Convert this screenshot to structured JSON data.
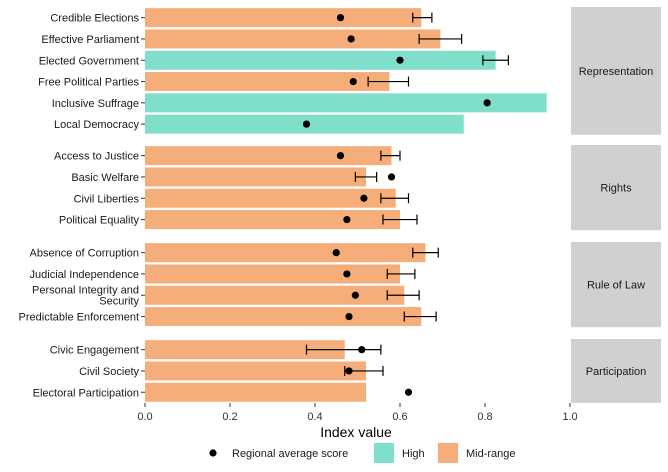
{
  "chart_data": {
    "type": "bar",
    "orientation": "horizontal",
    "xlabel": "Index value",
    "xlim": [
      0,
      1
    ],
    "xticks": [
      "0.0",
      "0.2",
      "0.4",
      "0.6",
      "0.8",
      "1.0"
    ],
    "colors": {
      "High": "#7fdfca",
      "Mid-range": "#f5ad7a"
    },
    "legend": {
      "position": "bottom",
      "items": [
        {
          "label": "Regional average score",
          "kind": "point"
        },
        {
          "label": "High",
          "kind": "fill"
        },
        {
          "label": "Mid-range",
          "kind": "fill"
        }
      ]
    },
    "facets": [
      {
        "name": "Representation",
        "items": [
          {
            "label": "Credible Elections",
            "value": 0.65,
            "level": "Mid-range",
            "avg": 0.46,
            "err": [
              0.63,
              0.675
            ]
          },
          {
            "label": "Effective Parliament",
            "value": 0.695,
            "level": "Mid-range",
            "avg": 0.485,
            "err": [
              0.645,
              0.745
            ]
          },
          {
            "label": "Elected Government",
            "value": 0.825,
            "level": "High",
            "avg": 0.6,
            "err": [
              0.795,
              0.855
            ]
          },
          {
            "label": "Free Political Parties",
            "value": 0.575,
            "level": "Mid-range",
            "avg": 0.49,
            "err": [
              0.525,
              0.62
            ]
          },
          {
            "label": "Inclusive Suffrage",
            "value": 0.945,
            "level": "High",
            "avg": 0.805,
            "err": null
          },
          {
            "label": "Local Democracy",
            "value": 0.75,
            "level": "High",
            "avg": 0.38,
            "err": null
          }
        ]
      },
      {
        "name": "Rights",
        "items": [
          {
            "label": "Access to Justice",
            "value": 0.58,
            "level": "Mid-range",
            "avg": 0.46,
            "err": [
              0.555,
              0.6
            ]
          },
          {
            "label": "Basic Welfare",
            "value": 0.52,
            "level": "Mid-range",
            "avg": 0.58,
            "err": [
              0.495,
              0.545
            ]
          },
          {
            "label": "Civil Liberties",
            "value": 0.59,
            "level": "Mid-range",
            "avg": 0.515,
            "err": [
              0.555,
              0.62
            ]
          },
          {
            "label": "Political Equality",
            "value": 0.6,
            "level": "Mid-range",
            "avg": 0.475,
            "err": [
              0.56,
              0.64
            ]
          }
        ]
      },
      {
        "name": "Rule of Law",
        "items": [
          {
            "label": "Absence of Corruption",
            "value": 0.66,
            "level": "Mid-range",
            "avg": 0.45,
            "err": [
              0.63,
              0.69
            ]
          },
          {
            "label": "Judicial Independence",
            "value": 0.6,
            "level": "Mid-range",
            "avg": 0.475,
            "err": [
              0.57,
              0.635
            ]
          },
          {
            "label": "Personal Integrity and Security",
            "value": 0.61,
            "level": "Mid-range",
            "avg": 0.495,
            "err": [
              0.57,
              0.645
            ]
          },
          {
            "label": "Predictable Enforcement",
            "value": 0.65,
            "level": "Mid-range",
            "avg": 0.48,
            "err": [
              0.61,
              0.685
            ]
          }
        ]
      },
      {
        "name": "Participation",
        "items": [
          {
            "label": "Civic Engagement",
            "value": 0.47,
            "level": "Mid-range",
            "avg": 0.51,
            "err": [
              0.38,
              0.555
            ]
          },
          {
            "label": "Civil Society",
            "value": 0.52,
            "level": "Mid-range",
            "avg": 0.48,
            "err": [
              0.47,
              0.56
            ]
          },
          {
            "label": "Electoral Participation",
            "value": 0.52,
            "level": "Mid-range",
            "avg": 0.62,
            "err": null
          }
        ]
      }
    ]
  }
}
